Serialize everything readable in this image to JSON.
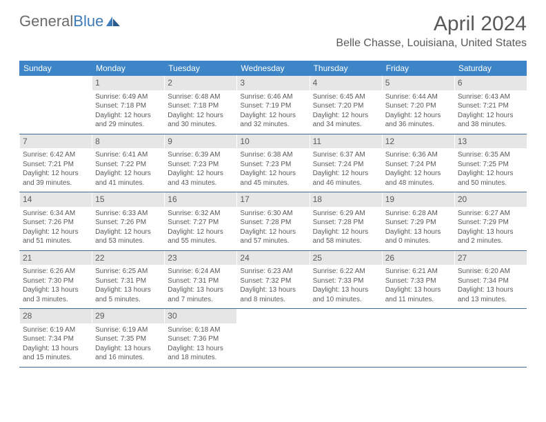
{
  "brand": {
    "part1": "General",
    "part2": "Blue"
  },
  "title": "April 2024",
  "location": "Belle Chasse, Louisiana, United States",
  "weekdays": [
    "Sunday",
    "Monday",
    "Tuesday",
    "Wednesday",
    "Thursday",
    "Friday",
    "Saturday"
  ],
  "colors": {
    "header_bg": "#3d85c6",
    "text": "#595959",
    "daynum_bg": "#e6e6e6",
    "border": "#3d6a94"
  },
  "layout": {
    "start_offset": 1,
    "days_in_month": 30
  },
  "days": {
    "1": {
      "sunrise": "6:49 AM",
      "sunset": "7:18 PM",
      "daylight": "12 hours and 29 minutes."
    },
    "2": {
      "sunrise": "6:48 AM",
      "sunset": "7:18 PM",
      "daylight": "12 hours and 30 minutes."
    },
    "3": {
      "sunrise": "6:46 AM",
      "sunset": "7:19 PM",
      "daylight": "12 hours and 32 minutes."
    },
    "4": {
      "sunrise": "6:45 AM",
      "sunset": "7:20 PM",
      "daylight": "12 hours and 34 minutes."
    },
    "5": {
      "sunrise": "6:44 AM",
      "sunset": "7:20 PM",
      "daylight": "12 hours and 36 minutes."
    },
    "6": {
      "sunrise": "6:43 AM",
      "sunset": "7:21 PM",
      "daylight": "12 hours and 38 minutes."
    },
    "7": {
      "sunrise": "6:42 AM",
      "sunset": "7:21 PM",
      "daylight": "12 hours and 39 minutes."
    },
    "8": {
      "sunrise": "6:41 AM",
      "sunset": "7:22 PM",
      "daylight": "12 hours and 41 minutes."
    },
    "9": {
      "sunrise": "6:39 AM",
      "sunset": "7:23 PM",
      "daylight": "12 hours and 43 minutes."
    },
    "10": {
      "sunrise": "6:38 AM",
      "sunset": "7:23 PM",
      "daylight": "12 hours and 45 minutes."
    },
    "11": {
      "sunrise": "6:37 AM",
      "sunset": "7:24 PM",
      "daylight": "12 hours and 46 minutes."
    },
    "12": {
      "sunrise": "6:36 AM",
      "sunset": "7:24 PM",
      "daylight": "12 hours and 48 minutes."
    },
    "13": {
      "sunrise": "6:35 AM",
      "sunset": "7:25 PM",
      "daylight": "12 hours and 50 minutes."
    },
    "14": {
      "sunrise": "6:34 AM",
      "sunset": "7:26 PM",
      "daylight": "12 hours and 51 minutes."
    },
    "15": {
      "sunrise": "6:33 AM",
      "sunset": "7:26 PM",
      "daylight": "12 hours and 53 minutes."
    },
    "16": {
      "sunrise": "6:32 AM",
      "sunset": "7:27 PM",
      "daylight": "12 hours and 55 minutes."
    },
    "17": {
      "sunrise": "6:30 AM",
      "sunset": "7:28 PM",
      "daylight": "12 hours and 57 minutes."
    },
    "18": {
      "sunrise": "6:29 AM",
      "sunset": "7:28 PM",
      "daylight": "12 hours and 58 minutes."
    },
    "19": {
      "sunrise": "6:28 AM",
      "sunset": "7:29 PM",
      "daylight": "13 hours and 0 minutes."
    },
    "20": {
      "sunrise": "6:27 AM",
      "sunset": "7:29 PM",
      "daylight": "13 hours and 2 minutes."
    },
    "21": {
      "sunrise": "6:26 AM",
      "sunset": "7:30 PM",
      "daylight": "13 hours and 3 minutes."
    },
    "22": {
      "sunrise": "6:25 AM",
      "sunset": "7:31 PM",
      "daylight": "13 hours and 5 minutes."
    },
    "23": {
      "sunrise": "6:24 AM",
      "sunset": "7:31 PM",
      "daylight": "13 hours and 7 minutes."
    },
    "24": {
      "sunrise": "6:23 AM",
      "sunset": "7:32 PM",
      "daylight": "13 hours and 8 minutes."
    },
    "25": {
      "sunrise": "6:22 AM",
      "sunset": "7:33 PM",
      "daylight": "13 hours and 10 minutes."
    },
    "26": {
      "sunrise": "6:21 AM",
      "sunset": "7:33 PM",
      "daylight": "13 hours and 11 minutes."
    },
    "27": {
      "sunrise": "6:20 AM",
      "sunset": "7:34 PM",
      "daylight": "13 hours and 13 minutes."
    },
    "28": {
      "sunrise": "6:19 AM",
      "sunset": "7:34 PM",
      "daylight": "13 hours and 15 minutes."
    },
    "29": {
      "sunrise": "6:19 AM",
      "sunset": "7:35 PM",
      "daylight": "13 hours and 16 minutes."
    },
    "30": {
      "sunrise": "6:18 AM",
      "sunset": "7:36 PM",
      "daylight": "13 hours and 18 minutes."
    }
  },
  "labels": {
    "sunrise": "Sunrise: ",
    "sunset": "Sunset: ",
    "daylight": "Daylight: "
  }
}
